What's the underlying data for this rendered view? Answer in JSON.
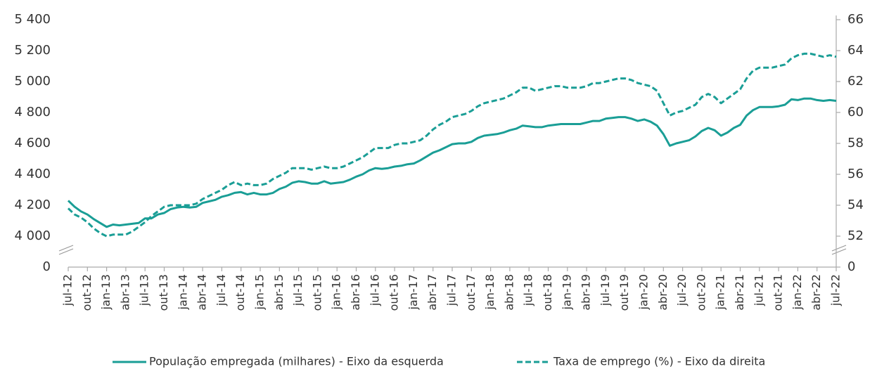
{
  "chart_data": {
    "type": "line",
    "categories": [
      "jul-12",
      null,
      null,
      "out-12",
      null,
      null,
      "jan-13",
      null,
      null,
      "abr-13",
      null,
      null,
      "jul-13",
      null,
      null,
      "out-13",
      null,
      null,
      "jan-14",
      null,
      null,
      "abr-14",
      null,
      null,
      "jul-14",
      null,
      null,
      "out-14",
      null,
      null,
      "jan-15",
      null,
      null,
      "abr-15",
      null,
      null,
      "jul-15",
      null,
      null,
      "out-15",
      null,
      null,
      "jan-16",
      null,
      null,
      "abr-16",
      null,
      null,
      "jul-16",
      null,
      null,
      "out-16",
      null,
      null,
      "jan-17",
      null,
      null,
      "abr-17",
      null,
      null,
      "jul-17",
      null,
      null,
      "out-17",
      null,
      null,
      "jan-18",
      null,
      null,
      "abr-18",
      null,
      null,
      "jul-18",
      null,
      null,
      "out-18",
      null,
      null,
      "jan-19",
      null,
      null,
      "abr-19",
      null,
      null,
      "jul-19",
      null,
      null,
      "out-19",
      null,
      null,
      "jan-20",
      null,
      null,
      "abr-20",
      null,
      null,
      "jul-20",
      null,
      null,
      "out-20",
      null,
      null,
      "jan-21",
      null,
      null,
      "abr-21",
      null,
      null,
      "jul-21",
      null,
      null,
      "out-21",
      null,
      null,
      "jan-22",
      null,
      null,
      "abr-22",
      null,
      null,
      "jul-22"
    ],
    "series": [
      {
        "name": "População empregada (milhares) - Eixo da esquerda",
        "color": "#1a9e96",
        "dash": false,
        "values": [
          4230,
          4190,
          4160,
          4140,
          4110,
          4085,
          4060,
          4075,
          4070,
          4075,
          4080,
          4085,
          4115,
          4115,
          4140,
          4150,
          4175,
          4185,
          4190,
          4185,
          4190,
          4215,
          4225,
          4235,
          4255,
          4265,
          4280,
          4285,
          4270,
          4280,
          4270,
          4270,
          4280,
          4305,
          4320,
          4345,
          4355,
          4350,
          4340,
          4340,
          4355,
          4340,
          4345,
          4350,
          4365,
          4385,
          4400,
          4425,
          4440,
          4435,
          4440,
          4450,
          4455,
          4465,
          4470,
          4490,
          4515,
          4540,
          4555,
          4575,
          4595,
          4600,
          4600,
          4610,
          4635,
          4650,
          4655,
          4660,
          4670,
          4685,
          4695,
          4715,
          4710,
          4705,
          4705,
          4715,
          4720,
          4725,
          4725,
          4725,
          4725,
          4735,
          4745,
          4745,
          4760,
          4765,
          4770,
          4770,
          4760,
          4745,
          4755,
          4740,
          4715,
          4660,
          4585,
          4600,
          4610,
          4620,
          4645,
          4680,
          4700,
          4685,
          4650,
          4670,
          4700,
          4720,
          4780,
          4815,
          4835,
          4835,
          4835,
          4840,
          4850,
          4885,
          4880,
          4890,
          4890,
          4880,
          4875,
          4880,
          4875
        ]
      },
      {
        "name": "Taxa de emprego (%) - Eixo da direita",
        "color": "#1a9e96",
        "dash": true,
        "axis": "y2",
        "values": [
          53.8,
          53.4,
          53.2,
          52.9,
          52.5,
          52.2,
          51.9,
          52.1,
          52.1,
          52.1,
          52.3,
          52.6,
          52.9,
          53.3,
          53.6,
          53.9,
          54.0,
          54.0,
          54.0,
          54.0,
          54.1,
          54.4,
          54.6,
          54.8,
          55.0,
          55.3,
          55.5,
          55.3,
          55.4,
          55.3,
          55.3,
          55.4,
          55.7,
          55.9,
          56.1,
          56.4,
          56.4,
          56.4,
          56.3,
          56.4,
          56.5,
          56.4,
          56.4,
          56.5,
          56.7,
          56.9,
          57.1,
          57.4,
          57.7,
          57.7,
          57.7,
          57.9,
          58.0,
          58.0,
          58.1,
          58.2,
          58.5,
          58.9,
          59.2,
          59.4,
          59.7,
          59.8,
          59.9,
          60.1,
          60.4,
          60.6,
          60.7,
          60.8,
          60.9,
          61.1,
          61.3,
          61.6,
          61.6,
          61.4,
          61.5,
          61.6,
          61.7,
          61.7,
          61.6,
          61.6,
          61.6,
          61.7,
          61.9,
          61.9,
          62.0,
          62.1,
          62.2,
          62.2,
          62.1,
          61.9,
          61.8,
          61.7,
          61.4,
          60.6,
          59.8,
          60.0,
          60.1,
          60.3,
          60.5,
          61.0,
          61.2,
          61.0,
          60.6,
          60.9,
          61.2,
          61.5,
          62.2,
          62.7,
          62.9,
          62.9,
          62.9,
          63.0,
          63.1,
          63.5,
          63.7,
          63.8,
          63.8,
          63.7,
          63.6,
          63.7,
          63.6
        ]
      }
    ],
    "ylim": [
      0,
      5400
    ],
    "ybreak": [
      0,
      4000
    ],
    "yticks": [
      0,
      {
        "value": 4000,
        "label": "4 000"
      },
      {
        "value": 4200,
        "label": "4 200"
      },
      {
        "value": 4400,
        "label": "4 400"
      },
      {
        "value": 4600,
        "label": "4 600"
      },
      {
        "value": 4800,
        "label": "4 800"
      },
      {
        "value": 5000,
        "label": "5 000"
      },
      {
        "value": 5200,
        "label": "5 200"
      },
      {
        "value": 5400,
        "label": "5 400"
      }
    ],
    "y2lim": [
      0,
      66
    ],
    "y2break": [
      0,
      52
    ],
    "y2ticks": [
      0,
      52,
      54,
      56,
      58,
      60,
      62,
      64,
      66
    ],
    "legend": "bottom"
  }
}
